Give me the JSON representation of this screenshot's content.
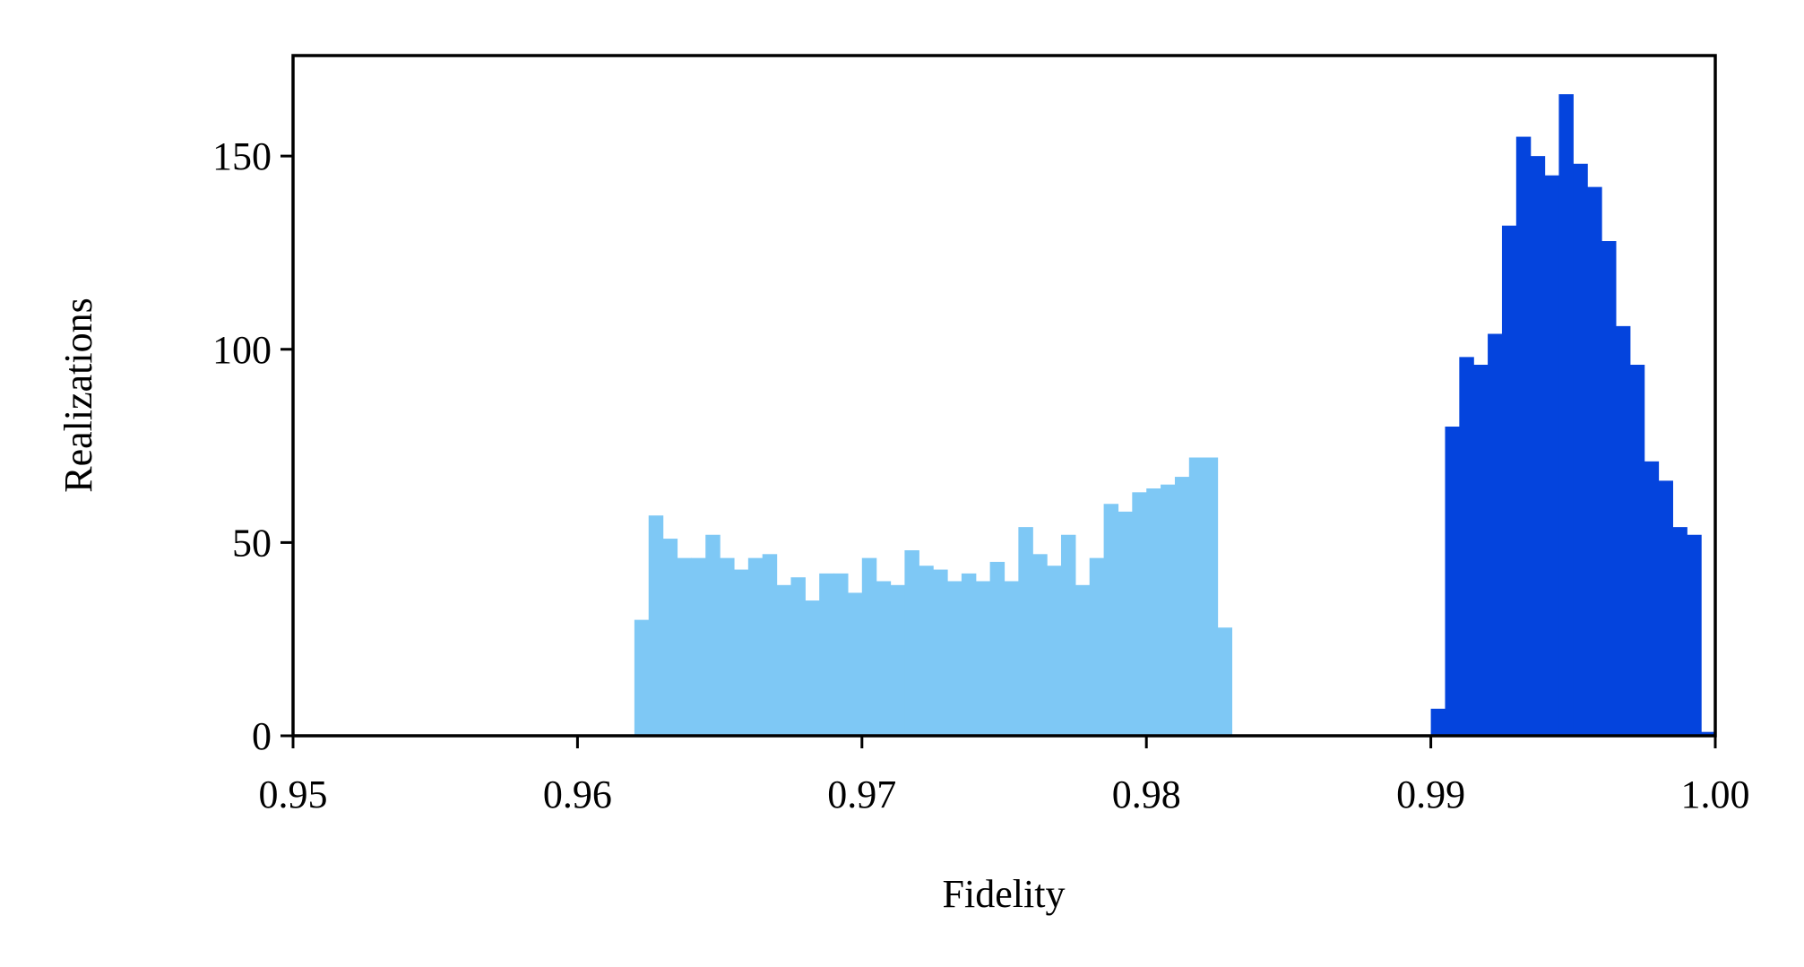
{
  "chart_data": {
    "type": "histogram",
    "x_label": "Fidelity",
    "y_label": "Realizations",
    "xlim": [
      0.95,
      1.0
    ],
    "ylim": [
      0,
      176
    ],
    "xticks": [
      0.95,
      0.96,
      0.97,
      0.98,
      0.99,
      {
        "value": 1.0,
        "label": "1.00"
      }
    ],
    "yticks": [
      0,
      50,
      100,
      150
    ],
    "series": [
      {
        "color": "#7ec8f5",
        "bins": [
          0.962,
          0.9625,
          0.963,
          0.9635,
          0.964,
          0.9645,
          0.965,
          0.9655,
          0.966,
          0.9665,
          0.967,
          0.9675,
          0.968,
          0.9685,
          0.969,
          0.9695,
          0.97,
          0.9705,
          0.971,
          0.9715,
          0.972,
          0.9725,
          0.973,
          0.9735,
          0.974,
          0.9745,
          0.975,
          0.9755,
          0.976,
          0.9765,
          0.977,
          0.9775,
          0.978,
          0.9785,
          0.979,
          0.9795,
          0.98,
          0.9805,
          0.981,
          0.9815,
          0.982,
          0.9825,
          0.983
        ],
        "values": [
          30,
          57,
          51,
          46,
          46,
          52,
          46,
          43,
          46,
          47,
          39,
          41,
          35,
          42,
          42,
          37,
          46,
          40,
          39,
          48,
          44,
          43,
          40,
          42,
          40,
          45,
          40,
          54,
          47,
          44,
          52,
          39,
          46,
          60,
          58,
          63,
          64,
          65,
          67,
          72,
          72,
          28
        ]
      },
      {
        "color": "#0444dd",
        "bins": [
          0.99,
          0.9905,
          0.991,
          0.9915,
          0.992,
          0.9925,
          0.993,
          0.9935,
          0.994,
          0.9945,
          0.995,
          0.9955,
          0.996,
          0.9965,
          0.997,
          0.9975,
          0.998,
          0.9985,
          0.999,
          0.9995,
          1.0
        ],
        "values": [
          7,
          80,
          98,
          96,
          104,
          132,
          155,
          150,
          145,
          166,
          148,
          142,
          128,
          106,
          96,
          71,
          66,
          54,
          52,
          1
        ]
      }
    ]
  }
}
